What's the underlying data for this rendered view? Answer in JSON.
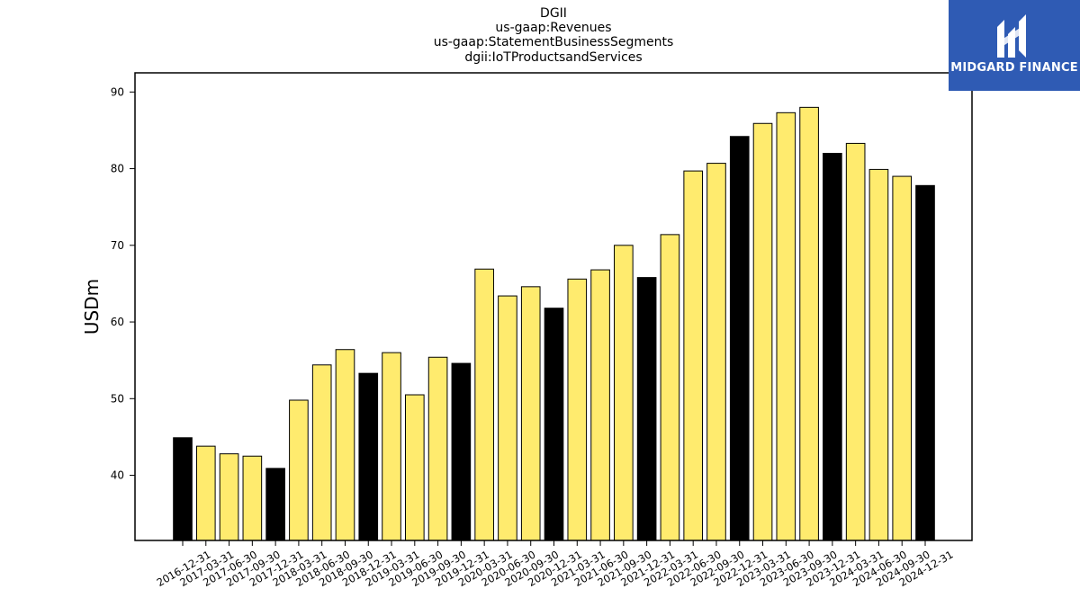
{
  "chart_data": {
    "type": "bar",
    "title_lines": [
      "DGII",
      "us-gaap:Revenues",
      "us-gaap:StatementBusinessSegments",
      "dgii:IoTProductsandServices"
    ],
    "xlabel": "",
    "ylabel": "USDm",
    "ylim": [
      31.5,
      92.5
    ],
    "yticks": [
      40,
      50,
      60,
      70,
      80,
      90
    ],
    "grid": false,
    "categories": [
      "2016-12-31",
      "2017-03-31",
      "2017-06-30",
      "2017-09-30",
      "2017-12-31",
      "2018-03-31",
      "2018-06-30",
      "2018-09-30",
      "2018-12-31",
      "2019-03-31",
      "2019-06-30",
      "2019-09-30",
      "2019-12-31",
      "2020-03-31",
      "2020-06-30",
      "2020-09-30",
      "2020-12-31",
      "2021-03-31",
      "2021-06-30",
      "2021-09-30",
      "2021-12-31",
      "2022-03-31",
      "2022-06-30",
      "2022-09-30",
      "2022-12-31",
      "2023-03-31",
      "2023-06-30",
      "2023-09-30",
      "2023-12-31",
      "2024-03-31",
      "2024-06-30",
      "2024-09-30",
      "2024-12-31"
    ],
    "values": [
      44.9,
      43.8,
      42.8,
      42.5,
      40.9,
      49.8,
      54.4,
      56.4,
      53.3,
      56.0,
      50.5,
      55.4,
      54.6,
      66.9,
      63.4,
      64.6,
      61.8,
      65.6,
      66.8,
      70.0,
      65.8,
      71.4,
      79.7,
      80.7,
      84.2,
      85.9,
      87.3,
      88.0,
      82.0,
      83.3,
      79.9,
      79.0,
      77.8
    ],
    "highlight": [
      true,
      false,
      false,
      false,
      true,
      false,
      false,
      false,
      true,
      false,
      false,
      false,
      true,
      false,
      false,
      false,
      true,
      false,
      false,
      false,
      true,
      false,
      false,
      false,
      true,
      false,
      false,
      false,
      true,
      false,
      false,
      false,
      true
    ],
    "colors": {
      "normal": "#ffeb6e",
      "highlight": "#000000",
      "edge": "#000000"
    }
  },
  "logo": {
    "text": "MIDGARD FINANCE",
    "background": "#2f5bb4"
  }
}
